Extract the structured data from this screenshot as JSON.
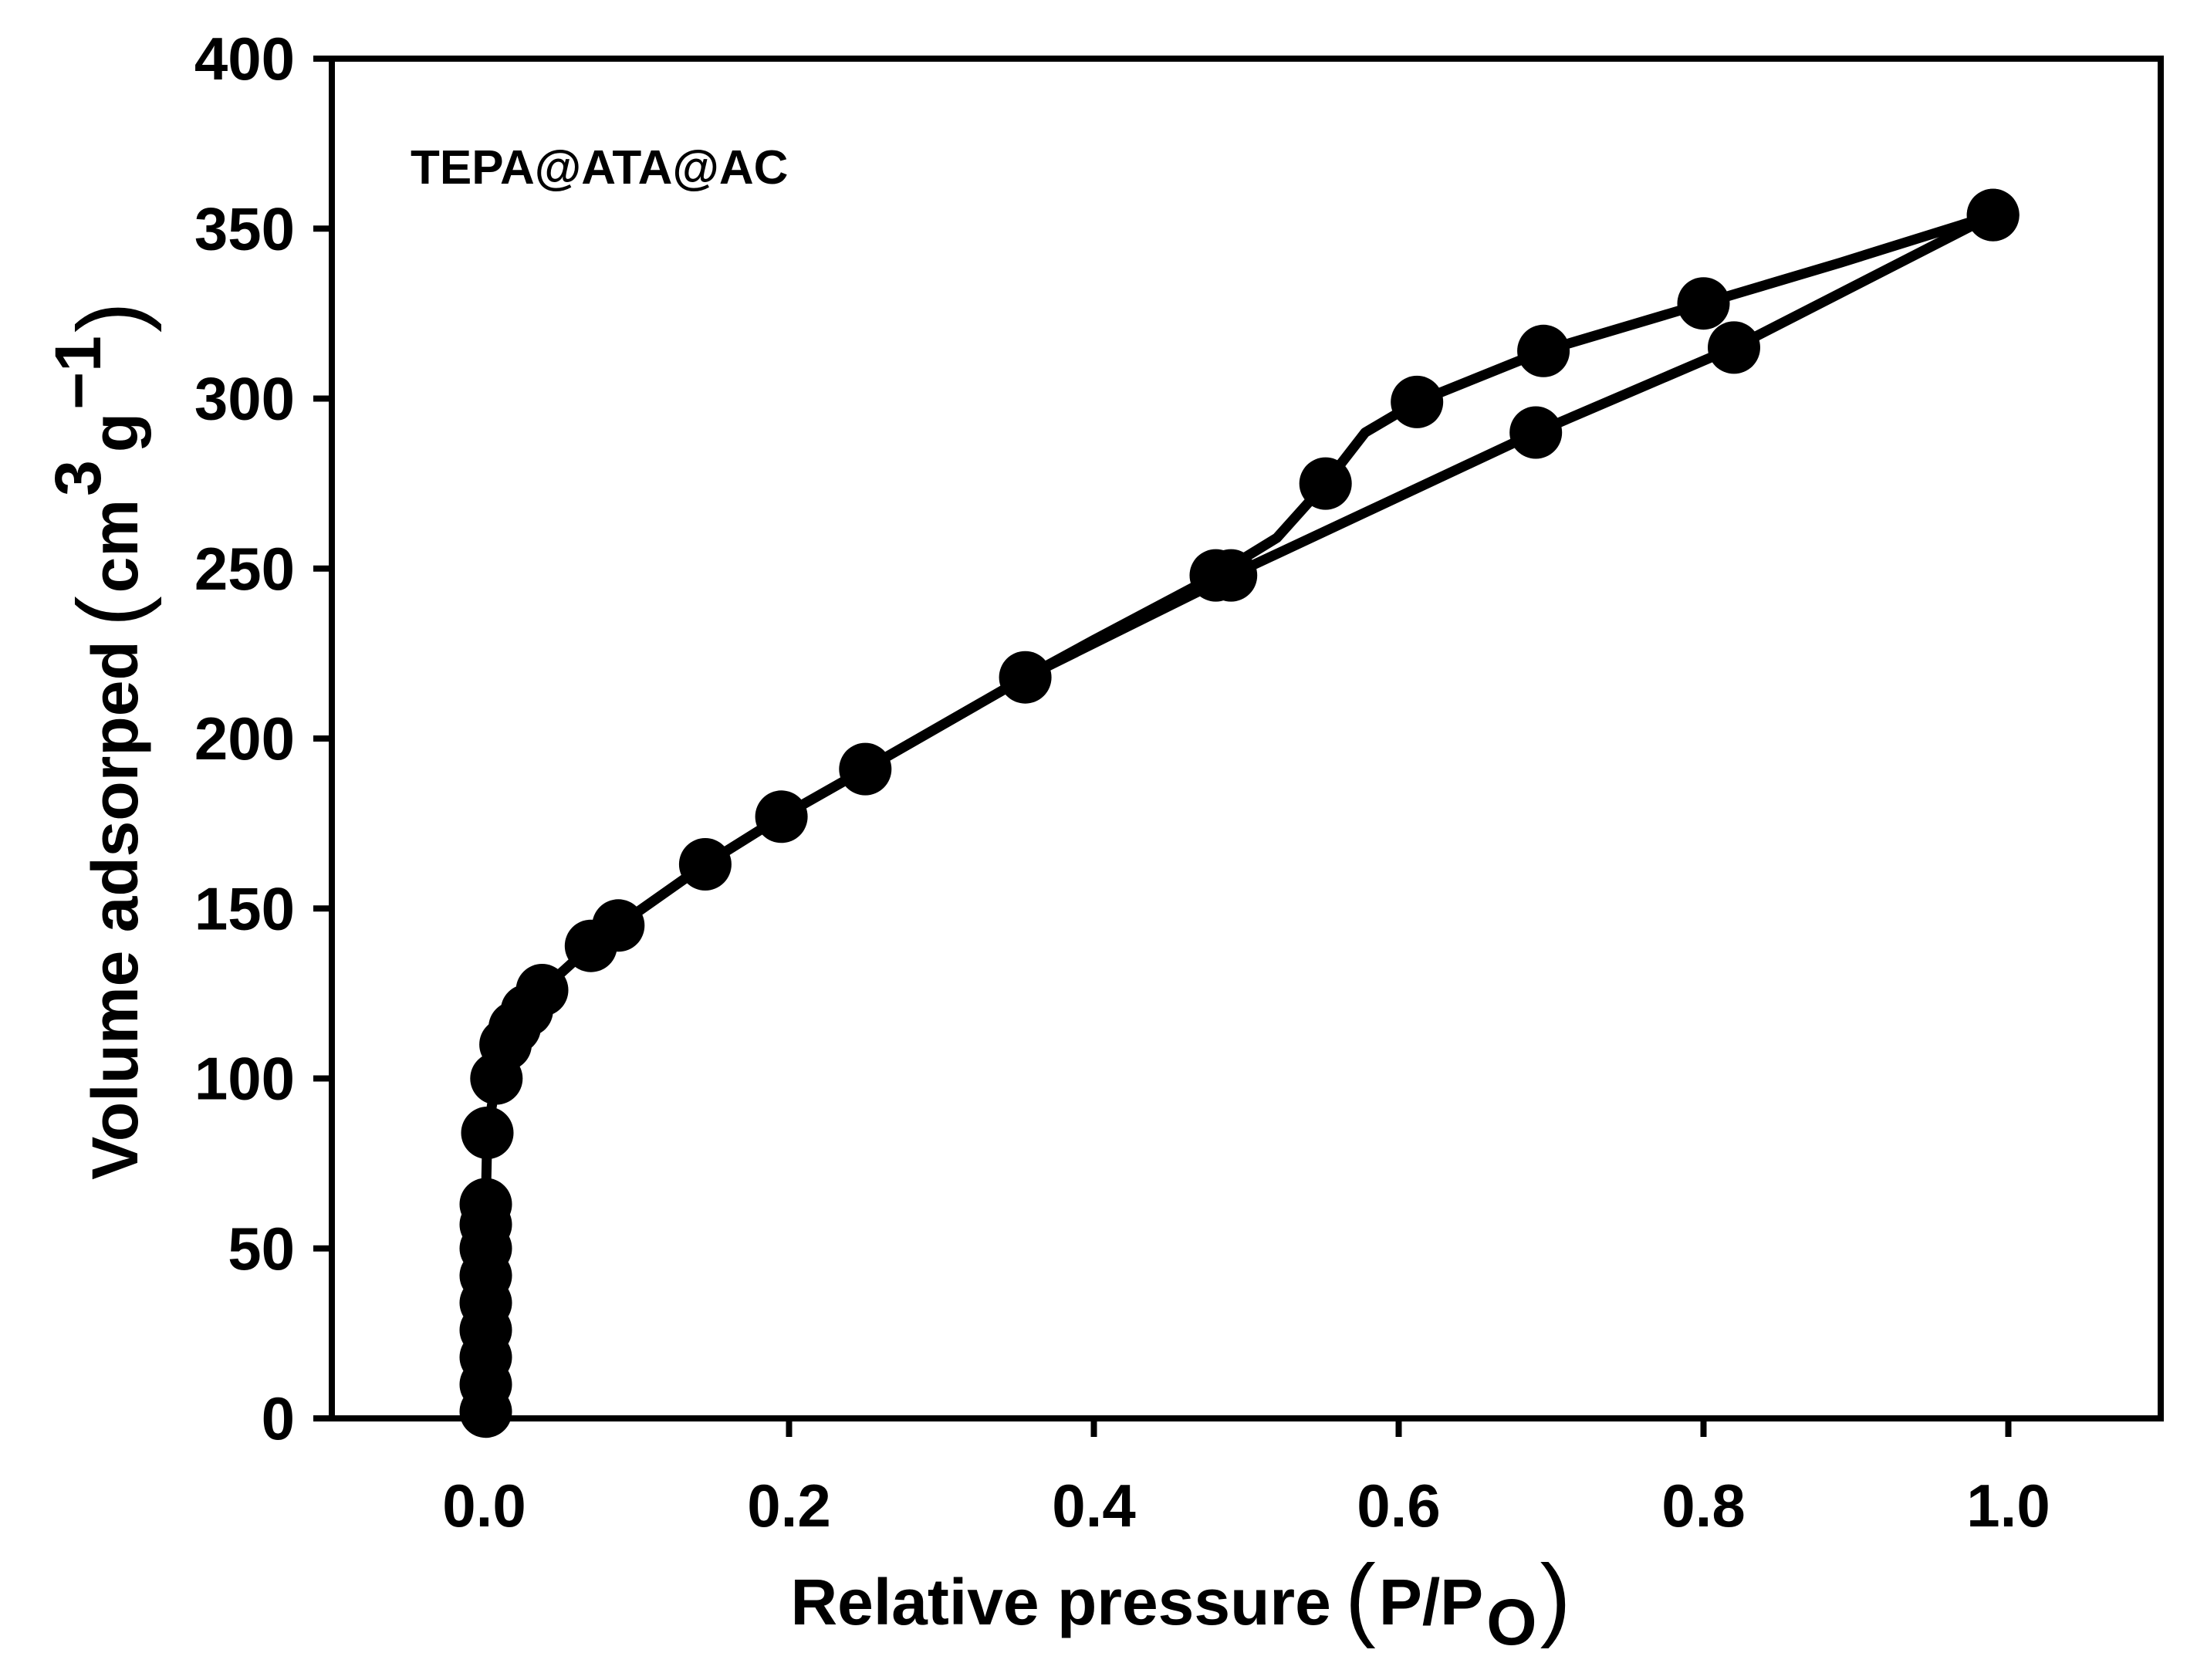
{
  "chart_data": {
    "type": "line",
    "annotation": "TEPA@ATA@AC",
    "xlabel": {
      "main": "Relative pressure",
      "paren_open": "(",
      "p1": "P/P",
      "sub": "O",
      "paren_close": ")"
    },
    "ylabel": {
      "main": "Volume adsorped",
      "paren_open": "(",
      "unit_a": "cm",
      "sup_a": "3",
      "unit_b": "g",
      "sup_b": "−1",
      "paren_close": ")"
    },
    "xlim": [
      -0.1,
      1.1
    ],
    "ylim": [
      0,
      400
    ],
    "x_ticks": [
      0.0,
      0.2,
      0.4,
      0.6,
      0.8,
      1.0
    ],
    "x_tick_labels": [
      "0.0",
      "0.2",
      "0.4",
      "0.6",
      "0.8",
      "1.0"
    ],
    "y_ticks": [
      0,
      50,
      100,
      150,
      200,
      250,
      300,
      350,
      400
    ],
    "y_tick_labels": [
      "0",
      "50",
      "100",
      "150",
      "200",
      "250",
      "300",
      "350",
      "400"
    ],
    "series": [
      {
        "name": "adsorption",
        "marker": "circle",
        "color": "#000000",
        "points": [
          [
            0.001,
            2
          ],
          [
            0.001,
            10
          ],
          [
            0.001,
            18
          ],
          [
            0.001,
            26
          ],
          [
            0.001,
            34
          ],
          [
            0.001,
            42
          ],
          [
            0.001,
            50
          ],
          [
            0.001,
            57
          ],
          [
            0.001,
            63
          ],
          [
            0.002,
            84
          ],
          [
            0.008,
            100
          ],
          [
            0.014,
            110
          ],
          [
            0.02,
            115
          ],
          [
            0.028,
            120
          ],
          [
            0.038,
            126
          ],
          [
            0.07,
            139
          ],
          [
            0.088,
            145
          ],
          [
            0.145,
            163
          ],
          [
            0.195,
            177
          ],
          [
            0.25,
            191
          ],
          [
            0.355,
            218
          ],
          [
            0.49,
            248
          ],
          [
            0.69,
            290
          ],
          [
            0.82,
            315
          ],
          [
            0.99,
            354
          ]
        ]
      },
      {
        "name": "desorption",
        "marker": "circle",
        "color": "#000000",
        "points": [
          [
            0.99,
            354
          ],
          [
            0.89,
            340
          ],
          [
            0.8,
            328
          ],
          [
            0.695,
            314
          ],
          [
            0.612,
            299
          ],
          [
            0.578,
            290
          ],
          [
            0.552,
            275
          ],
          [
            0.52,
            259
          ],
          [
            0.48,
            248
          ],
          [
            0.4,
            229
          ],
          [
            0.355,
            218
          ],
          [
            0.25,
            191
          ],
          [
            0.195,
            177
          ],
          [
            0.145,
            163
          ],
          [
            0.088,
            145
          ]
        ],
        "marker_points": [
          [
            0.99,
            354
          ],
          [
            0.8,
            328
          ],
          [
            0.695,
            314
          ],
          [
            0.612,
            299
          ],
          [
            0.552,
            275
          ],
          [
            0.48,
            248
          ]
        ]
      }
    ]
  }
}
